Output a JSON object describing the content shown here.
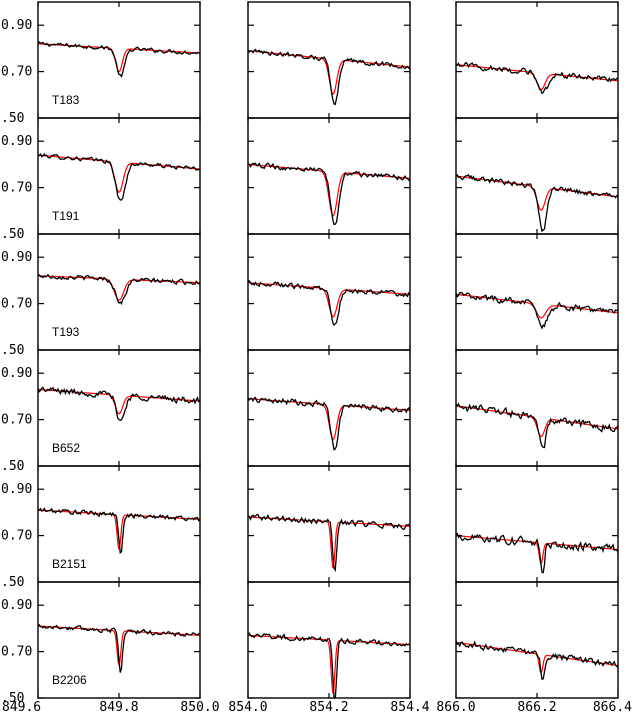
{
  "chart_data": {
    "type": "line",
    "title": "",
    "xlabel": "",
    "ylabel": "",
    "grid": false,
    "layout": "6 rows x 3 columns",
    "y_ticks": [
      0.5,
      0.7,
      0.9
    ],
    "y_tick_labels": [
      ".50",
      "0.70",
      "0.90"
    ],
    "ylim": [
      0.5,
      1.0
    ],
    "columns": [
      {
        "xlim": [
          849.6,
          850.0
        ],
        "x_ticks": [
          849.6,
          849.8,
          850.0
        ],
        "x_tick_labels": [
          "849.6",
          "849.8",
          "850.0"
        ],
        "line_center": 849.8
      },
      {
        "xlim": [
          854.0,
          854.4
        ],
        "x_ticks": [
          854.0,
          854.2,
          854.4
        ],
        "x_tick_labels": [
          "854.0",
          "854.2",
          "854.4"
        ],
        "line_center": 854.21
      },
      {
        "xlim": [
          866.0,
          866.4
        ],
        "x_ticks": [
          866.0,
          866.2,
          866.4
        ],
        "x_tick_labels": [
          "866.0",
          "866.2",
          "866.4"
        ],
        "line_center": 866.21
      }
    ],
    "series_colors": {
      "observed": "#000000",
      "model": "#ff0000"
    },
    "stars": [
      {
        "label": "T183",
        "panels": [
          {
            "cont": [
              0.82,
              0.78
            ],
            "obs_depth": 0.12,
            "obs_width": 0.022,
            "model_depth": 0.1,
            "model_width": 0.018,
            "noise": 0.012
          },
          {
            "cont": [
              0.79,
              0.72
            ],
            "obs_depth": 0.2,
            "obs_width": 0.02,
            "model_depth": 0.15,
            "model_width": 0.02,
            "noise": 0.014
          },
          {
            "cont": [
              0.73,
              0.66
            ],
            "obs_depth": 0.09,
            "obs_width": 0.025,
            "model_depth": 0.07,
            "model_width": 0.022,
            "noise": 0.018
          }
        ]
      },
      {
        "label": "T191",
        "panels": [
          {
            "cont": [
              0.84,
              0.78
            ],
            "obs_depth": 0.17,
            "obs_width": 0.025,
            "model_depth": 0.13,
            "model_width": 0.022,
            "noise": 0.013
          },
          {
            "cont": [
              0.8,
              0.74
            ],
            "obs_depth": 0.23,
            "obs_width": 0.022,
            "model_depth": 0.19,
            "model_width": 0.022,
            "noise": 0.015
          },
          {
            "cont": [
              0.75,
              0.66
            ],
            "obs_depth": 0.19,
            "obs_width": 0.022,
            "model_depth": 0.1,
            "model_width": 0.022,
            "noise": 0.016
          }
        ]
      },
      {
        "label": "T193",
        "panels": [
          {
            "cont": [
              0.82,
              0.79
            ],
            "obs_depth": 0.1,
            "obs_width": 0.028,
            "model_depth": 0.09,
            "model_width": 0.025,
            "noise": 0.014
          },
          {
            "cont": [
              0.79,
              0.74
            ],
            "obs_depth": 0.15,
            "obs_width": 0.022,
            "model_depth": 0.12,
            "model_width": 0.022,
            "noise": 0.016
          },
          {
            "cont": [
              0.74,
              0.66
            ],
            "obs_depth": 0.09,
            "obs_width": 0.028,
            "model_depth": 0.06,
            "model_width": 0.025,
            "noise": 0.02
          }
        ]
      },
      {
        "label": "B652",
        "panels": [
          {
            "cont": [
              0.83,
              0.78
            ],
            "obs_depth": 0.11,
            "obs_width": 0.022,
            "model_depth": 0.08,
            "model_width": 0.02,
            "noise": 0.02
          },
          {
            "cont": [
              0.79,
              0.74
            ],
            "obs_depth": 0.19,
            "obs_width": 0.02,
            "model_depth": 0.15,
            "model_width": 0.02,
            "noise": 0.018
          },
          {
            "cont": [
              0.76,
              0.66
            ],
            "obs_depth": 0.14,
            "obs_width": 0.018,
            "model_depth": 0.08,
            "model_width": 0.02,
            "noise": 0.025
          }
        ]
      },
      {
        "label": "B2151",
        "panels": [
          {
            "cont": [
              0.81,
              0.77
            ],
            "obs_depth": 0.17,
            "obs_width": 0.01,
            "model_depth": 0.15,
            "model_width": 0.01,
            "noise": 0.015
          },
          {
            "cont": [
              0.78,
              0.74
            ],
            "obs_depth": 0.22,
            "obs_width": 0.01,
            "model_depth": 0.2,
            "model_width": 0.01,
            "noise": 0.018
          },
          {
            "cont": [
              0.7,
              0.64
            ],
            "obs_depth": 0.14,
            "obs_width": 0.01,
            "model_depth": 0.09,
            "model_width": 0.01,
            "noise": 0.025
          }
        ]
      },
      {
        "label": "B2206",
        "panels": [
          {
            "cont": [
              0.81,
              0.77
            ],
            "obs_depth": 0.18,
            "obs_width": 0.01,
            "model_depth": 0.15,
            "model_width": 0.01,
            "noise": 0.014
          },
          {
            "cont": [
              0.77,
              0.73
            ],
            "obs_depth": 0.27,
            "obs_width": 0.01,
            "model_depth": 0.23,
            "model_width": 0.01,
            "noise": 0.016
          },
          {
            "cont": [
              0.74,
              0.64
            ],
            "obs_depth": 0.11,
            "obs_width": 0.01,
            "model_depth": 0.08,
            "model_width": 0.01,
            "noise": 0.02
          }
        ]
      }
    ]
  }
}
